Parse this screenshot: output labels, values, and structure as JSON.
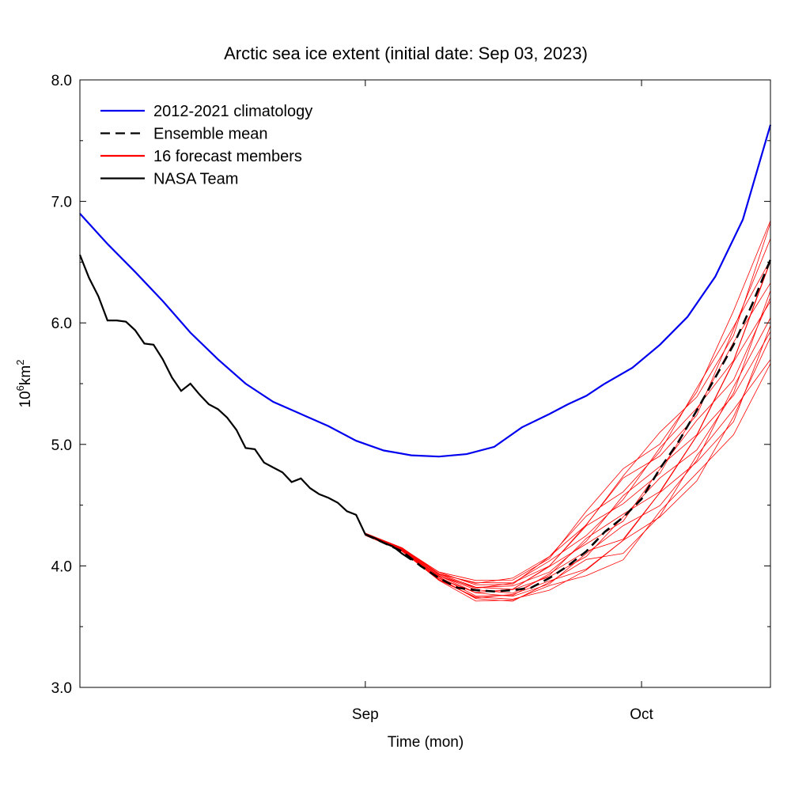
{
  "chart_data": {
    "type": "line",
    "title": "Arctic sea ice extent (initial date: Sep 03, 2023)",
    "xlabel": "Time (mon)",
    "ylabel": {
      "base": "10",
      "exp1": "6",
      "unit": "km",
      "exp2": "2"
    },
    "x_unit": "day of year 2023",
    "xlim": [
      213,
      288
    ],
    "ylim": [
      3.0,
      8.0
    ],
    "y_ticks": [
      {
        "value": 3.0,
        "label": "3.0"
      },
      {
        "value": 4.0,
        "label": "4.0"
      },
      {
        "value": 5.0,
        "label": "5.0"
      },
      {
        "value": 6.0,
        "label": "6.0"
      },
      {
        "value": 7.0,
        "label": "7.0"
      },
      {
        "value": 8.0,
        "label": "8.0"
      }
    ],
    "x_ticks": [
      {
        "value": 244,
        "label": "Sep"
      },
      {
        "value": 274,
        "label": "Oct"
      }
    ],
    "legend": {
      "placement": "top-left",
      "items": [
        {
          "label": "2012-2021 climatology",
          "color": "#0000ee",
          "dash": "solid"
        },
        {
          "label": "Ensemble mean",
          "color": "#000000",
          "dash": "dashed"
        },
        {
          "label": "16 forecast members",
          "color": "#ff0000",
          "dash": "solid"
        },
        {
          "label": "NASA Team",
          "color": "#000000",
          "dash": "solid"
        }
      ]
    },
    "colors": {
      "climatology": "#0000ee",
      "nasa": "#000000",
      "mean": "#000000",
      "members": "#ff0000"
    },
    "climatology": {
      "x": [
        213,
        216,
        219,
        222,
        225,
        228,
        231,
        234,
        237,
        240,
        243,
        246,
        249,
        252,
        255,
        258,
        261,
        264,
        266,
        268,
        270,
        273,
        276,
        279,
        282,
        285,
        288
      ],
      "y": [
        6.9,
        6.65,
        6.42,
        6.18,
        5.92,
        5.7,
        5.5,
        5.35,
        5.25,
        5.15,
        5.03,
        4.95,
        4.91,
        4.9,
        4.92,
        4.98,
        5.14,
        5.25,
        5.33,
        5.4,
        5.5,
        5.63,
        5.82,
        6.05,
        6.38,
        6.85,
        7.63
      ]
    },
    "nasa_team": {
      "x": [
        213,
        214,
        215,
        216,
        217,
        218,
        219,
        220,
        221,
        222,
        223,
        224,
        225,
        226,
        227,
        228,
        229,
        230,
        231,
        232,
        233,
        234,
        235,
        236,
        237,
        238,
        239,
        240,
        241,
        242,
        243,
        244,
        245,
        246,
        247,
        248,
        249
      ],
      "y": [
        6.56,
        6.37,
        6.22,
        6.02,
        6.02,
        6.01,
        5.94,
        5.83,
        5.82,
        5.7,
        5.55,
        5.44,
        5.5,
        5.41,
        5.33,
        5.29,
        5.22,
        5.12,
        4.97,
        4.96,
        4.85,
        4.81,
        4.77,
        4.69,
        4.72,
        4.64,
        4.59,
        4.56,
        4.52,
        4.45,
        4.42,
        4.26,
        4.23,
        4.19,
        4.16,
        4.1,
        4.05
      ]
    },
    "ensemble_mean": {
      "x": [
        244,
        246,
        248,
        250,
        252,
        254,
        256,
        258,
        260,
        262,
        264,
        266,
        268,
        270,
        272,
        274,
        276,
        278,
        280,
        282,
        284,
        286,
        288
      ],
      "y": [
        4.26,
        4.19,
        4.12,
        4.0,
        3.9,
        3.82,
        3.8,
        3.79,
        3.8,
        3.82,
        3.9,
        4.0,
        4.12,
        4.28,
        4.4,
        4.55,
        4.8,
        5.02,
        5.28,
        5.55,
        5.82,
        6.15,
        6.52
      ]
    },
    "forecast_members": {
      "count": 16,
      "x": [
        244,
        248,
        252,
        256,
        260,
        264,
        268,
        272,
        276,
        280,
        284,
        288
      ],
      "spread": {
        "lower": [
          4.25,
          4.12,
          3.88,
          3.71,
          3.7,
          3.8,
          3.92,
          4.05,
          4.35,
          4.7,
          5.08,
          5.65
        ],
        "upper": [
          4.27,
          4.15,
          3.95,
          3.88,
          3.9,
          4.1,
          4.45,
          4.8,
          5.1,
          5.5,
          6.1,
          6.85
        ]
      }
    }
  }
}
